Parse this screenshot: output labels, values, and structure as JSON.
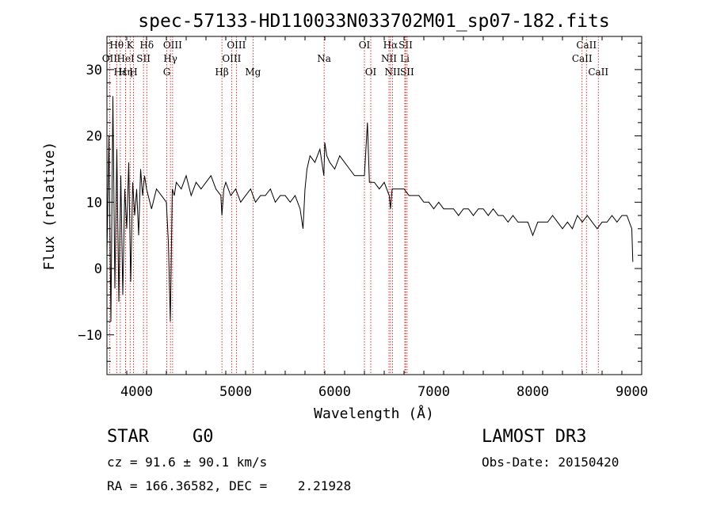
{
  "chart_data": {
    "type": "line",
    "title": "spec-57133-HD110033N033702M01_sp07-182.fits",
    "xlabel": "Wavelength (Å)",
    "ylabel": "Flux (relative)",
    "xlim": [
      3700,
      9100
    ],
    "ylim": [
      -16,
      35
    ],
    "x_ticks": [
      4000,
      5000,
      6000,
      7000,
      8000,
      9000
    ],
    "x_tick_labels": [
      "4000",
      "5000",
      "6000",
      "7000",
      "8000",
      "9000"
    ],
    "y_ticks": [
      -10,
      0,
      10,
      20,
      30
    ],
    "y_tick_labels": [
      "−10",
      "0",
      "10",
      "20",
      "30"
    ],
    "series": [
      {
        "name": "flux",
        "x": [
          3700,
          3720,
          3740,
          3760,
          3780,
          3800,
          3820,
          3840,
          3860,
          3880,
          3900,
          3920,
          3940,
          3960,
          3980,
          4000,
          4020,
          4040,
          4060,
          4080,
          4100,
          4150,
          4200,
          4250,
          4300,
          4320,
          4340,
          4360,
          4380,
          4400,
          4450,
          4500,
          4550,
          4600,
          4650,
          4700,
          4750,
          4800,
          4850,
          4861,
          4880,
          4900,
          4950,
          5000,
          5050,
          5100,
          5150,
          5200,
          5250,
          5300,
          5350,
          5400,
          5450,
          5500,
          5550,
          5600,
          5650,
          5680,
          5700,
          5720,
          5750,
          5800,
          5850,
          5890,
          5900,
          5920,
          5950,
          6000,
          6050,
          6100,
          6150,
          6200,
          6250,
          6300,
          6330,
          6350,
          6400,
          6450,
          6500,
          6550,
          6563,
          6580,
          6600,
          6650,
          6700,
          6750,
          6800,
          6850,
          6900,
          6950,
          7000,
          7050,
          7100,
          7150,
          7200,
          7250,
          7300,
          7350,
          7400,
          7450,
          7500,
          7550,
          7600,
          7650,
          7700,
          7750,
          7800,
          7850,
          7900,
          7950,
          8000,
          8050,
          8100,
          8150,
          8200,
          8250,
          8300,
          8350,
          8400,
          8450,
          8500,
          8550,
          8600,
          8650,
          8700,
          8750,
          8800,
          8850,
          8900,
          8950,
          9000,
          9010
        ],
        "values": [
          2,
          20,
          -8,
          26,
          -3,
          18,
          -5,
          14,
          -4,
          12,
          6,
          16,
          -2,
          13,
          8,
          12,
          5,
          15,
          11,
          14,
          12,
          9,
          12,
          11,
          10,
          4,
          -8,
          12,
          11,
          13,
          12,
          14,
          11,
          13,
          12,
          13,
          14,
          12,
          11,
          8,
          12,
          13,
          11,
          12,
          10,
          11,
          12,
          10,
          11,
          11,
          12,
          10,
          11,
          11,
          10,
          11,
          9,
          6,
          12,
          15,
          17,
          16,
          18,
          14,
          19,
          17,
          16,
          15,
          17,
          16,
          15,
          14,
          14,
          14,
          22,
          13,
          13,
          12,
          13,
          11,
          9,
          12,
          12,
          12,
          12,
          11,
          11,
          11,
          10,
          10,
          9,
          10,
          9,
          9,
          9,
          8,
          9,
          9,
          8,
          9,
          9,
          8,
          9,
          8,
          8,
          7,
          8,
          7,
          7,
          7,
          5,
          7,
          7,
          7,
          8,
          7,
          6,
          7,
          6,
          8,
          7,
          8,
          7,
          6,
          7,
          7,
          8,
          7,
          8,
          8,
          6,
          1
        ]
      }
    ],
    "line_markers": [
      {
        "label": "Hθ",
        "x": 3798,
        "row": 0
      },
      {
        "label": "OII",
        "x": 3727,
        "row": 1
      },
      {
        "label": "Hε",
        "x": 3835,
        "row": 2
      },
      {
        "label": "K",
        "x": 3934,
        "row": 0
      },
      {
        "label": "HeI",
        "x": 3889,
        "row": 1
      },
      {
        "label": "Hη",
        "x": 3889,
        "row": 2
      },
      {
        "label": "SII",
        "x": 4069,
        "row": 1
      },
      {
        "label": "H",
        "x": 3968,
        "row": 2
      },
      {
        "label": "Hδ",
        "x": 4102,
        "row": 0
      },
      {
        "label": "OIII",
        "x": 4363,
        "row": 0
      },
      {
        "label": "Hγ",
        "x": 4341,
        "row": 1
      },
      {
        "label": "G",
        "x": 4304,
        "row": 2
      },
      {
        "label": "OIII",
        "x": 5007,
        "row": 0
      },
      {
        "label": "OIII",
        "x": 4959,
        "row": 1
      },
      {
        "label": "Hβ",
        "x": 4861,
        "row": 2
      },
      {
        "label": "Mg",
        "x": 5175,
        "row": 2
      },
      {
        "label": "Na",
        "x": 5893,
        "row": 1
      },
      {
        "label": "OI",
        "x": 6300,
        "row": 0
      },
      {
        "label": "OI",
        "x": 6364,
        "row": 2
      },
      {
        "label": "Hα",
        "x": 6563,
        "row": 0
      },
      {
        "label": "SII",
        "x": 6716,
        "row": 0
      },
      {
        "label": "NII",
        "x": 6548,
        "row": 1
      },
      {
        "label": "Li",
        "x": 6708,
        "row": 1
      },
      {
        "label": "NII",
        "x": 6584,
        "row": 2
      },
      {
        "label": "SII",
        "x": 6731,
        "row": 2
      },
      {
        "label": "CaII",
        "x": 8542,
        "row": 0
      },
      {
        "label": "CaII",
        "x": 8498,
        "row": 1
      },
      {
        "label": "CaII",
        "x": 8662,
        "row": 2
      }
    ]
  },
  "info": {
    "class_label": "STAR",
    "subclass": "G0",
    "survey": "LAMOST DR3",
    "redshift": "cz = 91.6 ± 90.1 km/s",
    "obs_date": "Obs-Date: 20150420",
    "coords": "RA = 166.36582, DEC =    2.21928"
  },
  "colors": {
    "spectrum": "#000000",
    "marker_line": "#cc0000",
    "axes": "#000000"
  }
}
